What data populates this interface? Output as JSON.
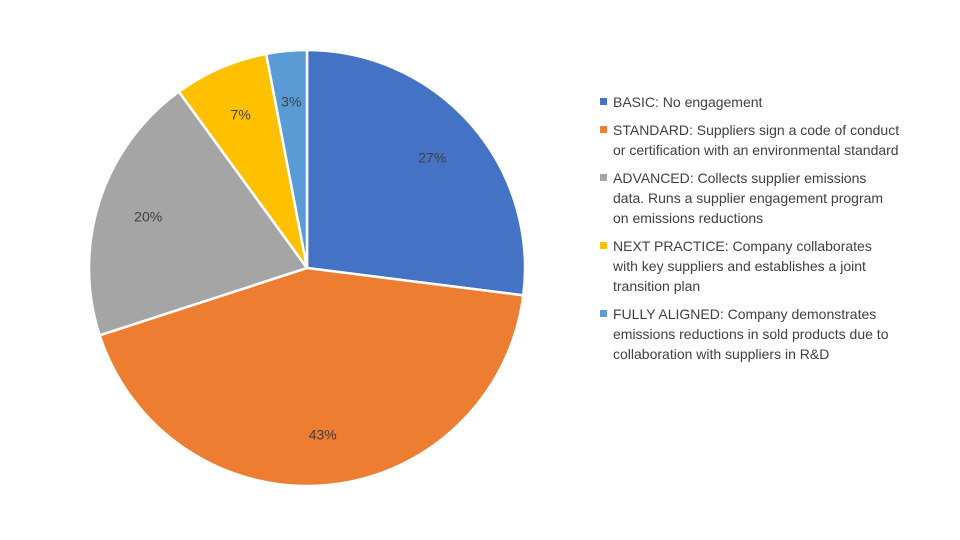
{
  "chart_data": {
    "type": "pie",
    "title": "",
    "categories": [
      "BASIC: No engagement",
      "STANDARD: Suppliers sign a code of conduct or certification with an environmental standard",
      "ADVANCED: Collects supplier emissions data. Runs a supplier engagement program on emissions reductions",
      "NEXT PRACTICE: Company collaborates with key suppliers and establishes a joint transition plan",
      "FULLY ALIGNED: Company demonstrates emissions reductions in sold products due to collaboration with suppliers in R&D"
    ],
    "values": [
      27,
      43,
      20,
      7,
      3
    ],
    "data_labels": [
      "27%",
      "43%",
      "20%",
      "7%",
      "3%"
    ],
    "colors": [
      "#4472C4",
      "#ED7D31",
      "#A5A5A5",
      "#FFC000",
      "#5B9BD5"
    ],
    "start_angle": "12 o'clock",
    "direction": "clockwise",
    "legend_position": "right"
  }
}
